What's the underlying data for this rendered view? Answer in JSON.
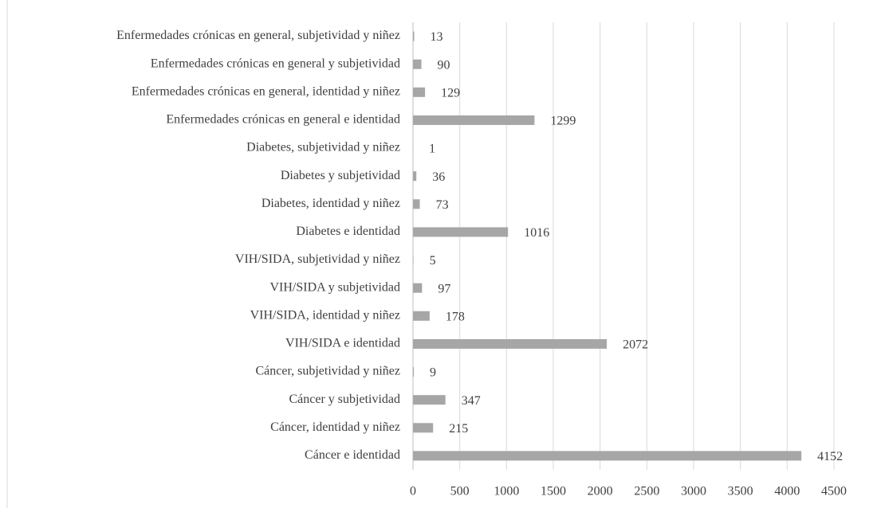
{
  "chart_data": {
    "type": "bar",
    "orientation": "horizontal",
    "color": "#a6a6a6",
    "grid": true,
    "categories": [
      "Enfermedades crónicas en general, subjetividad y niñez",
      "Enfermedades crónicas en general y subjetividad",
      "Enfermedades crónicas en general, identidad y niñez",
      "Enfermedades crónicas en general e identidad",
      "Diabetes, subjetividad y niñez",
      "Diabetes  y subjetividad",
      "Diabetes, identidad y niñez",
      "Diabetes e identidad",
      "VIH/SIDA, subjetividad y niñez",
      "VIH/SIDA y subjetividad",
      "VIH/SIDA, identidad y niñez",
      "VIH/SIDA e identidad",
      "Cáncer, subjetividad y niñez",
      "Cáncer y subjetividad",
      "Cáncer, identidad y niñez",
      "Cáncer e identidad"
    ],
    "values": [
      13,
      90,
      129,
      1299,
      1,
      36,
      73,
      1016,
      5,
      97,
      178,
      2072,
      9,
      347,
      215,
      4152
    ],
    "xlim": [
      0,
      4500
    ],
    "xticks": [
      0,
      500,
      1000,
      1500,
      2000,
      2500,
      3000,
      3500,
      4000,
      4500
    ]
  }
}
